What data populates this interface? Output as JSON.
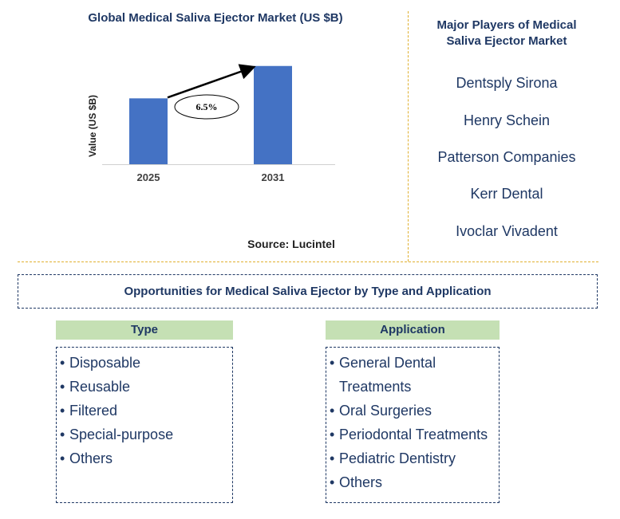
{
  "chart_data": {
    "type": "bar",
    "title": "Global Medical Saliva Ejector Market (US $B)",
    "categories": [
      "2025",
      "2031"
    ],
    "values": [
      0.57,
      0.85
    ],
    "ylabel": "Value (US $B)",
    "xlabel": "",
    "ylim": [
      0,
      1
    ],
    "annotation": "6.5%",
    "bar_color": "#4472c4",
    "source": "Source: Lucintel"
  },
  "players": {
    "title": "Major Players of Medical Saliva Ejector Market",
    "items": [
      "Dentsply Sirona",
      "Henry Schein",
      "Patterson Companies",
      "Kerr Dental",
      "Ivoclar Vivadent"
    ]
  },
  "opportunities": {
    "title": "Opportunities for Medical Saliva Ejector by Type and Application",
    "type": {
      "header": "Type",
      "items": [
        "Disposable",
        "Reusable",
        "Filtered",
        "Special-purpose",
        "Others"
      ]
    },
    "application": {
      "header": "Application",
      "items": [
        "General Dental",
        "Treatments",
        "Oral Surgeries",
        "Periodontal Treatments",
        "Pediatric Dentistry",
        "Others"
      ]
    }
  },
  "colors": {
    "navy": "#1f3864",
    "header_fill": "#c5e0b4",
    "divider": "#e0b030"
  },
  "bullet_glyph": "•"
}
